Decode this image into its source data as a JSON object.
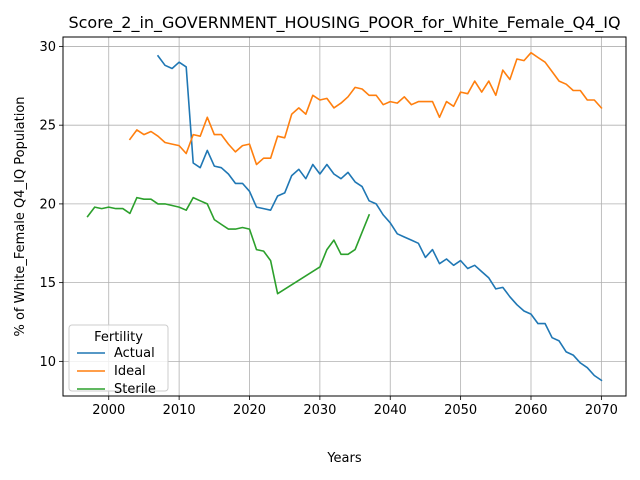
{
  "chart_data": {
    "type": "line",
    "title": "Score_2_in_GOVERNMENT_HOUSING_POOR_for_White_Female_Q4_IQ",
    "xlabel": "Years",
    "ylabel": "% of White_Female Q4_IQ Population",
    "xlim": [
      1993.5,
      2073.5
    ],
    "ylim": [
      7.8,
      30.6
    ],
    "xticks": [
      2000,
      2010,
      2020,
      2030,
      2040,
      2050,
      2060,
      2070
    ],
    "yticks": [
      10,
      15,
      20,
      25,
      30
    ],
    "grid": true,
    "legend": {
      "title": "Fertility",
      "placement": "lower-left"
    },
    "series": [
      {
        "name": "Actual",
        "color": "#1f77b4",
        "x": [
          2007,
          2008,
          2009,
          2010,
          2011,
          2012,
          2013,
          2014,
          2015,
          2016,
          2017,
          2018,
          2019,
          2020,
          2021,
          2022,
          2023,
          2024,
          2025,
          2026,
          2027,
          2028,
          2029,
          2030,
          2031,
          2032,
          2033,
          2034,
          2035,
          2036,
          2037,
          2038,
          2039,
          2040,
          2041,
          2042,
          2043,
          2044,
          2045,
          2046,
          2047,
          2048,
          2049,
          2050,
          2051,
          2052,
          2053,
          2054,
          2055,
          2056,
          2057,
          2058,
          2059,
          2060,
          2061,
          2062,
          2063,
          2064,
          2065,
          2066,
          2067,
          2068,
          2069,
          2070
        ],
        "values": [
          29.4,
          28.8,
          28.6,
          29.0,
          28.7,
          22.6,
          22.3,
          23.4,
          22.4,
          22.3,
          21.9,
          21.3,
          21.3,
          20.8,
          19.8,
          19.7,
          19.6,
          20.5,
          20.7,
          21.8,
          22.2,
          21.6,
          22.5,
          21.9,
          22.5,
          21.9,
          21.6,
          22.0,
          21.4,
          21.1,
          20.2,
          20.0,
          19.3,
          18.8,
          18.1,
          17.9,
          17.7,
          17.5,
          16.6,
          17.1,
          16.2,
          16.5,
          16.1,
          16.4,
          15.9,
          16.1,
          15.7,
          15.3,
          14.6,
          14.7,
          14.1,
          13.6,
          13.2,
          13.0,
          12.4,
          12.4,
          11.5,
          11.3,
          10.6,
          10.4,
          9.9,
          9.6,
          9.1,
          8.8
        ]
      },
      {
        "name": "Ideal",
        "color": "#ff7f0e",
        "x": [
          2003,
          2004,
          2005,
          2006,
          2007,
          2008,
          2009,
          2010,
          2011,
          2012,
          2013,
          2014,
          2015,
          2016,
          2017,
          2018,
          2019,
          2020,
          2021,
          2022,
          2023,
          2024,
          2025,
          2026,
          2027,
          2028,
          2029,
          2030,
          2031,
          2032,
          2033,
          2034,
          2035,
          2036,
          2037,
          2038,
          2039,
          2040,
          2041,
          2042,
          2043,
          2044,
          2045,
          2046,
          2047,
          2048,
          2049,
          2050,
          2051,
          2052,
          2053,
          2054,
          2055,
          2056,
          2057,
          2058,
          2059,
          2060,
          2061,
          2062,
          2063,
          2064,
          2065,
          2066,
          2067,
          2068,
          2069,
          2070
        ],
        "values": [
          24.1,
          24.7,
          24.4,
          24.6,
          24.3,
          23.9,
          23.8,
          23.7,
          23.2,
          24.4,
          24.3,
          25.5,
          24.4,
          24.4,
          23.8,
          23.3,
          23.7,
          23.8,
          22.5,
          22.9,
          22.9,
          24.3,
          24.2,
          25.7,
          26.1,
          25.7,
          26.9,
          26.6,
          26.7,
          26.1,
          26.4,
          26.8,
          27.4,
          27.3,
          26.9,
          26.9,
          26.3,
          26.5,
          26.4,
          26.8,
          26.3,
          26.5,
          26.5,
          26.5,
          25.5,
          26.5,
          26.2,
          27.1,
          27.0,
          27.8,
          27.1,
          27.8,
          26.9,
          28.5,
          27.9,
          29.2,
          29.1,
          29.6,
          29.3,
          29.0,
          28.4,
          27.8,
          27.6,
          27.2,
          27.2,
          26.6,
          26.6,
          26.1
        ]
      },
      {
        "name": "Sterile",
        "color": "#2ca02c",
        "x": [
          1997,
          1998,
          1999,
          2000,
          2001,
          2002,
          2003,
          2004,
          2005,
          2006,
          2007,
          2008,
          2009,
          2010,
          2011,
          2012,
          2013,
          2014,
          2015,
          2016,
          2017,
          2018,
          2019,
          2020,
          2021,
          2022,
          2023,
          2024,
          2030,
          2031,
          2032,
          2033,
          2034,
          2035,
          2036,
          2037
        ],
        "values": [
          19.2,
          19.8,
          19.7,
          19.8,
          19.7,
          19.7,
          19.4,
          20.4,
          20.3,
          20.3,
          20.0,
          20.0,
          19.9,
          19.8,
          19.6,
          20.4,
          20.2,
          20.0,
          19.0,
          18.7,
          18.4,
          18.4,
          18.5,
          18.4,
          17.1,
          17.0,
          16.4,
          14.3,
          16.0,
          17.1,
          17.7,
          16.8,
          16.8,
          17.1,
          18.2,
          19.3
        ]
      }
    ]
  }
}
